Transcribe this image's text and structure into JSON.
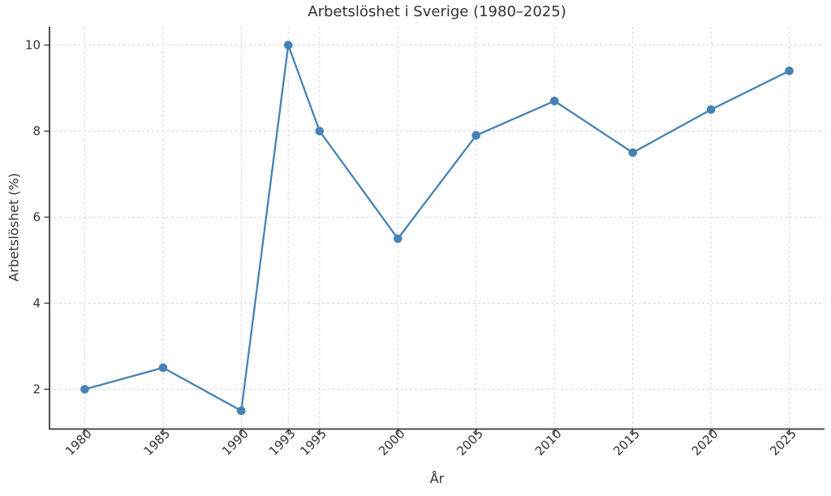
{
  "chart_data": {
    "type": "line",
    "title": "Arbetslöshet i Sverige (1980–2025)",
    "xlabel": "År",
    "ylabel": "Arbetslöshet (%)",
    "x": [
      1980,
      1985,
      1990,
      1993,
      1995,
      2000,
      2005,
      2010,
      2015,
      2020,
      2025
    ],
    "series": [
      {
        "name": "Arbetslöshet (%)",
        "values": [
          2.0,
          2.5,
          1.5,
          10.0,
          8.0,
          5.5,
          7.9,
          8.7,
          7.5,
          8.5,
          9.4
        ]
      }
    ],
    "xticks": [
      1980,
      1985,
      1990,
      1993,
      1995,
      2000,
      2005,
      2010,
      2015,
      2020,
      2025
    ],
    "xtick_labels": [
      "1980",
      "1985",
      "1990",
      "1993",
      "1995",
      "2000",
      "2005",
      "2010",
      "2015",
      "2020",
      "2025"
    ],
    "xtick_rotation_deg": 45,
    "yticks": [
      2,
      4,
      6,
      8,
      10
    ],
    "ytick_labels": [
      "2",
      "4",
      "6",
      "8",
      "10"
    ],
    "xlim": [
      1977.75,
      2027.25
    ],
    "ylim": [
      1.075,
      10.425
    ],
    "grid": true,
    "grid_style": "dashed",
    "legend": "none",
    "marker": "o",
    "colors": {
      "line": "#4682b4",
      "marker": "#4682b4",
      "grid": "#d7d7d7",
      "spine": "#3a3a3a",
      "tick": "#3a3a3a",
      "text": "#333333",
      "background": "#ffffff"
    }
  }
}
